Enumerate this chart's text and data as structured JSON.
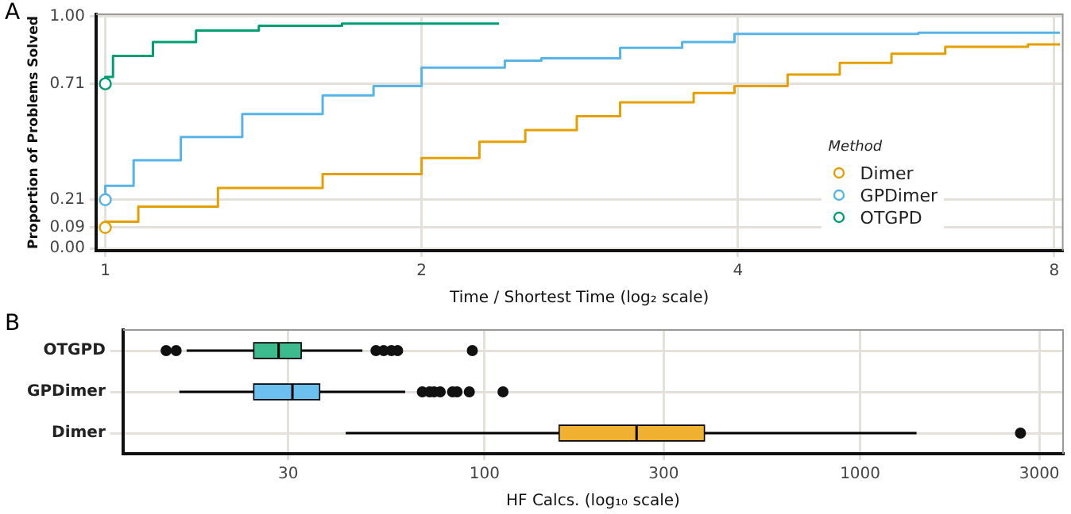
{
  "chart_data": [
    {
      "type": "step",
      "title": "A",
      "xlabel": "Time / Shortest Time (log₂ scale)",
      "ylabel": "Proportion of Problems Solved",
      "legend_title": "Method",
      "legend": "bottom right",
      "log": "x",
      "grid": true,
      "xlim": [
        0.98,
        8.15
      ],
      "xticks": [
        1,
        2,
        4,
        8
      ],
      "ylim": [
        -0.01,
        1.01
      ],
      "yticks": [
        {
          "value": 0,
          "label": "0.00"
        },
        0.09,
        0.21,
        0.71,
        {
          "value": 1,
          "label": "1.00"
        }
      ],
      "series": [
        {
          "name": "Dimer",
          "color": "#e69f00",
          "x": [
            1,
            1.075,
            1.28,
            1.61,
            2.0,
            2.27,
            2.51,
            2.81,
            3.09,
            3.63,
            3.97,
            4.46,
            5.0,
            5.6,
            6.3,
            7.55,
            8.1
          ],
          "values": [
            0.09,
            0.115,
            0.18,
            0.26,
            0.32,
            0.39,
            0.46,
            0.51,
            0.57,
            0.63,
            0.67,
            0.7,
            0.75,
            0.8,
            0.84,
            0.87,
            0.88
          ]
        },
        {
          "name": "GPDimer",
          "color": "#56b4e9",
          "x": [
            1,
            1.064,
            1.18,
            1.35,
            1.61,
            1.8,
            2.0,
            2.4,
            2.6,
            3.09,
            3.54,
            3.97,
            5.94,
            8.1
          ],
          "values": [
            0.21,
            0.27,
            0.38,
            0.48,
            0.58,
            0.66,
            0.7,
            0.78,
            0.81,
            0.82,
            0.865,
            0.89,
            0.925,
            0.93
          ]
        },
        {
          "name": "OTGPD",
          "color": "#009e73",
          "x": [
            1,
            1.017,
            1.11,
            1.22,
            1.4,
            1.68,
            2.02,
            2.37
          ],
          "values": [
            0.71,
            0.74,
            0.83,
            0.89,
            0.94,
            0.96,
            0.97,
            0.97
          ]
        },
        {
          "type": "scatter",
          "marker": "circle",
          "x": [
            1,
            1,
            1
          ],
          "values": [
            0.09,
            0.21,
            0.71
          ],
          "colors": [
            "#e69f00",
            "#56b4e9",
            "#009e73"
          ]
        }
      ]
    },
    {
      "type": "box",
      "title": "B",
      "xlabel": "HF Calcs. (log₁₀ scale)",
      "orientation": "horizontal",
      "log": "x",
      "grid": true,
      "xlim": [
        10.9,
        3470
      ],
      "xticks": [
        30,
        100,
        300,
        1000,
        3000
      ],
      "categories": [
        "OTGPD",
        "GPDimer",
        "Dimer"
      ],
      "colors": [
        "#3dbb8f",
        "#6cc0ef",
        "#f0b030"
      ],
      "boxes": [
        {
          "low": 16.1,
          "q1": 24.3,
          "median": 28.3,
          "q3": 32.5,
          "high": 47.3,
          "outliers": [
            14.2,
            15.1,
            51.4,
            53.9,
            56.5,
            58.7,
            92.8
          ]
        },
        {
          "low": 15.4,
          "q1": 24.3,
          "median": 30.8,
          "q3": 36.4,
          "high": 61.5,
          "outliers": [
            68.3,
            71.4,
            73.4,
            76.2,
            82.2,
            84.5,
            91.1,
            112
          ]
        },
        {
          "low": 42.7,
          "q1": 158,
          "median": 254,
          "q3": 385,
          "high": 1413,
          "outliers": [
            2673
          ]
        }
      ]
    }
  ]
}
